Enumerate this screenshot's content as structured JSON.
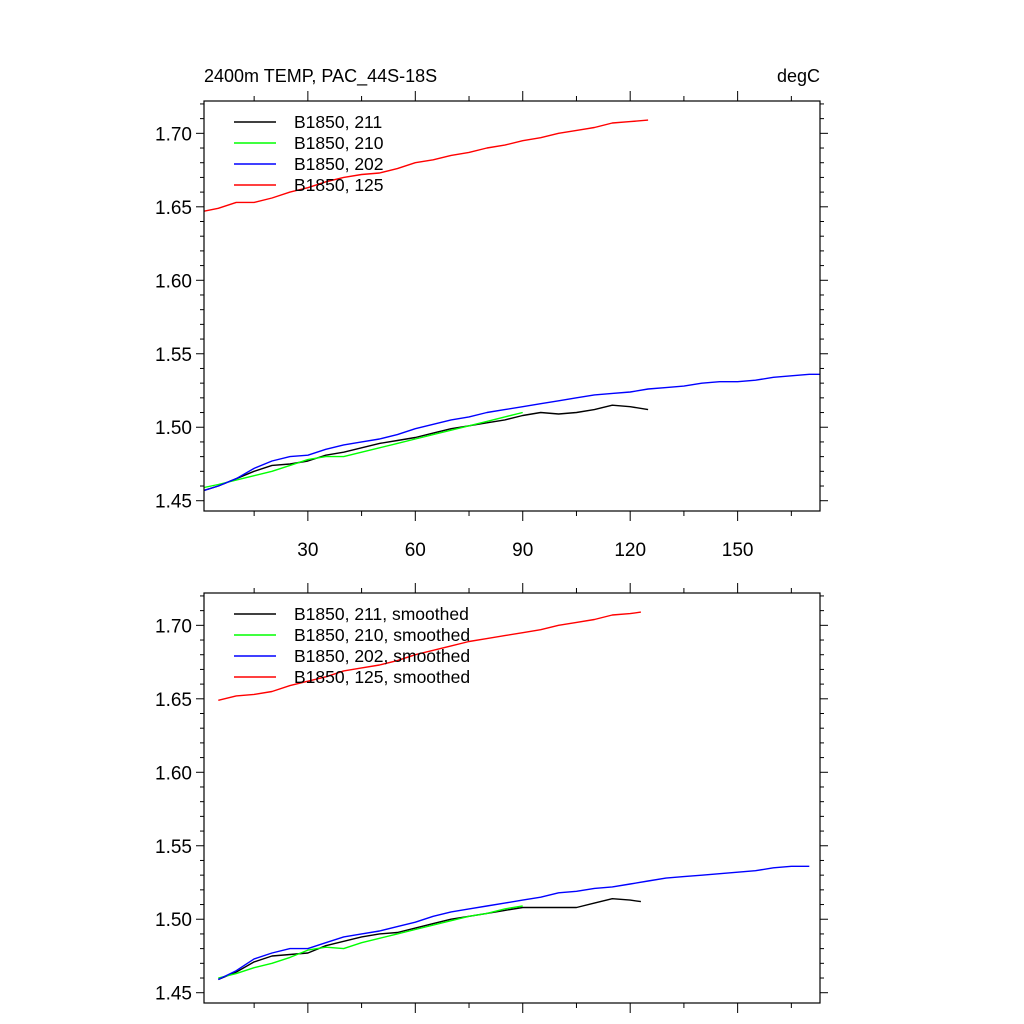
{
  "chart_data": [
    {
      "type": "line",
      "title": "2400m TEMP, PAC_44S-18S",
      "units": "degC",
      "xlim": [
        1,
        173
      ],
      "ylim": [
        1.443,
        1.722
      ],
      "x_ticks": [
        30,
        60,
        90,
        120,
        150
      ],
      "y_ticks": [
        1.45,
        1.5,
        1.55,
        1.6,
        1.65,
        1.7
      ],
      "y_tick_labels": [
        "1.45",
        "1.50",
        "1.55",
        "1.60",
        "1.65",
        "1.70"
      ],
      "grid": false,
      "legend_position": "top-left",
      "series": [
        {
          "name": "B1850, 211",
          "color": "#000000",
          "x": [
            1,
            5,
            10,
            15,
            20,
            25,
            30,
            35,
            40,
            45,
            50,
            55,
            60,
            65,
            70,
            75,
            80,
            85,
            90,
            95,
            100,
            105,
            110,
            115,
            120,
            125
          ],
          "y": [
            1.457,
            1.46,
            1.465,
            1.47,
            1.474,
            1.475,
            1.477,
            1.481,
            1.483,
            1.486,
            1.489,
            1.491,
            1.493,
            1.496,
            1.499,
            1.501,
            1.503,
            1.505,
            1.508,
            1.51,
            1.509,
            1.51,
            1.512,
            1.515,
            1.514,
            1.512
          ]
        },
        {
          "name": "B1850, 210",
          "color": "#00ff00",
          "x": [
            1,
            5,
            10,
            15,
            20,
            25,
            30,
            35,
            40,
            45,
            50,
            55,
            60,
            65,
            70,
            75,
            80,
            85,
            90
          ],
          "y": [
            1.459,
            1.461,
            1.464,
            1.467,
            1.47,
            1.474,
            1.478,
            1.48,
            1.48,
            1.483,
            1.486,
            1.489,
            1.492,
            1.495,
            1.498,
            1.501,
            1.504,
            1.507,
            1.51
          ]
        },
        {
          "name": "B1850, 202",
          "color": "#0000ff",
          "x": [
            1,
            5,
            10,
            15,
            20,
            25,
            30,
            35,
            40,
            45,
            50,
            55,
            60,
            65,
            70,
            75,
            80,
            85,
            90,
            95,
            100,
            105,
            110,
            115,
            120,
            125,
            130,
            135,
            140,
            145,
            150,
            155,
            160,
            165,
            170,
            173
          ],
          "y": [
            1.457,
            1.46,
            1.465,
            1.472,
            1.477,
            1.48,
            1.481,
            1.485,
            1.488,
            1.49,
            1.492,
            1.495,
            1.499,
            1.502,
            1.505,
            1.507,
            1.51,
            1.512,
            1.514,
            1.516,
            1.518,
            1.52,
            1.522,
            1.523,
            1.524,
            1.526,
            1.527,
            1.528,
            1.53,
            1.531,
            1.531,
            1.532,
            1.534,
            1.535,
            1.536,
            1.536
          ]
        },
        {
          "name": "B1850, 125",
          "color": "#ff0000",
          "x": [
            1,
            5,
            10,
            15,
            20,
            25,
            30,
            35,
            40,
            45,
            50,
            55,
            60,
            65,
            70,
            75,
            80,
            85,
            90,
            95,
            100,
            105,
            110,
            115,
            120,
            125
          ],
          "y": [
            1.647,
            1.649,
            1.653,
            1.653,
            1.656,
            1.66,
            1.663,
            1.667,
            1.67,
            1.672,
            1.673,
            1.676,
            1.68,
            1.682,
            1.685,
            1.687,
            1.69,
            1.692,
            1.695,
            1.697,
            1.7,
            1.702,
            1.704,
            1.707,
            1.708,
            1.709
          ]
        }
      ]
    },
    {
      "type": "line",
      "xlim": [
        1,
        173
      ],
      "ylim": [
        1.443,
        1.722
      ],
      "x_ticks": [
        30,
        60,
        90,
        120,
        150
      ],
      "y_ticks": [
        1.45,
        1.5,
        1.55,
        1.6,
        1.65,
        1.7
      ],
      "y_tick_labels": [
        "1.45",
        "1.50",
        "1.55",
        "1.60",
        "1.65",
        "1.70"
      ],
      "grid": false,
      "legend_position": "top-left",
      "series": [
        {
          "name": "B1850, 211, smoothed",
          "color": "#000000",
          "x": [
            5,
            10,
            15,
            20,
            25,
            30,
            35,
            40,
            45,
            50,
            55,
            60,
            65,
            70,
            75,
            80,
            85,
            90,
            95,
            100,
            105,
            110,
            115,
            120,
            123
          ],
          "y": [
            1.459,
            1.464,
            1.471,
            1.475,
            1.476,
            1.477,
            1.482,
            1.485,
            1.488,
            1.49,
            1.491,
            1.494,
            1.497,
            1.5,
            1.502,
            1.504,
            1.506,
            1.508,
            1.508,
            1.508,
            1.508,
            1.511,
            1.514,
            1.513,
            1.512
          ]
        },
        {
          "name": "B1850, 210, smoothed",
          "color": "#00ff00",
          "x": [
            5,
            10,
            15,
            20,
            25,
            30,
            35,
            40,
            45,
            50,
            55,
            60,
            65,
            70,
            75,
            80,
            85,
            90
          ],
          "y": [
            1.46,
            1.463,
            1.467,
            1.47,
            1.474,
            1.479,
            1.481,
            1.48,
            1.484,
            1.487,
            1.49,
            1.493,
            1.496,
            1.499,
            1.502,
            1.504,
            1.507,
            1.509
          ]
        },
        {
          "name": "B1850, 202, smoothed",
          "color": "#0000ff",
          "x": [
            5,
            10,
            15,
            20,
            25,
            30,
            35,
            40,
            45,
            50,
            55,
            60,
            65,
            70,
            75,
            80,
            85,
            90,
            95,
            100,
            105,
            110,
            115,
            120,
            125,
            130,
            135,
            140,
            145,
            150,
            155,
            160,
            165,
            170
          ],
          "y": [
            1.459,
            1.465,
            1.473,
            1.477,
            1.48,
            1.48,
            1.484,
            1.488,
            1.49,
            1.492,
            1.495,
            1.498,
            1.502,
            1.505,
            1.507,
            1.509,
            1.511,
            1.513,
            1.515,
            1.518,
            1.519,
            1.521,
            1.522,
            1.524,
            1.526,
            1.528,
            1.529,
            1.53,
            1.531,
            1.532,
            1.533,
            1.535,
            1.536,
            1.536
          ]
        },
        {
          "name": "B1850, 125, smoothed",
          "color": "#ff0000",
          "x": [
            5,
            10,
            15,
            20,
            25,
            30,
            35,
            40,
            45,
            50,
            55,
            60,
            65,
            70,
            75,
            80,
            85,
            90,
            95,
            100,
            105,
            110,
            115,
            120,
            123
          ],
          "y": [
            1.649,
            1.652,
            1.653,
            1.655,
            1.659,
            1.662,
            1.665,
            1.669,
            1.671,
            1.673,
            1.676,
            1.68,
            1.683,
            1.686,
            1.689,
            1.691,
            1.693,
            1.695,
            1.697,
            1.7,
            1.702,
            1.704,
            1.707,
            1.708,
            1.709
          ]
        }
      ]
    }
  ]
}
